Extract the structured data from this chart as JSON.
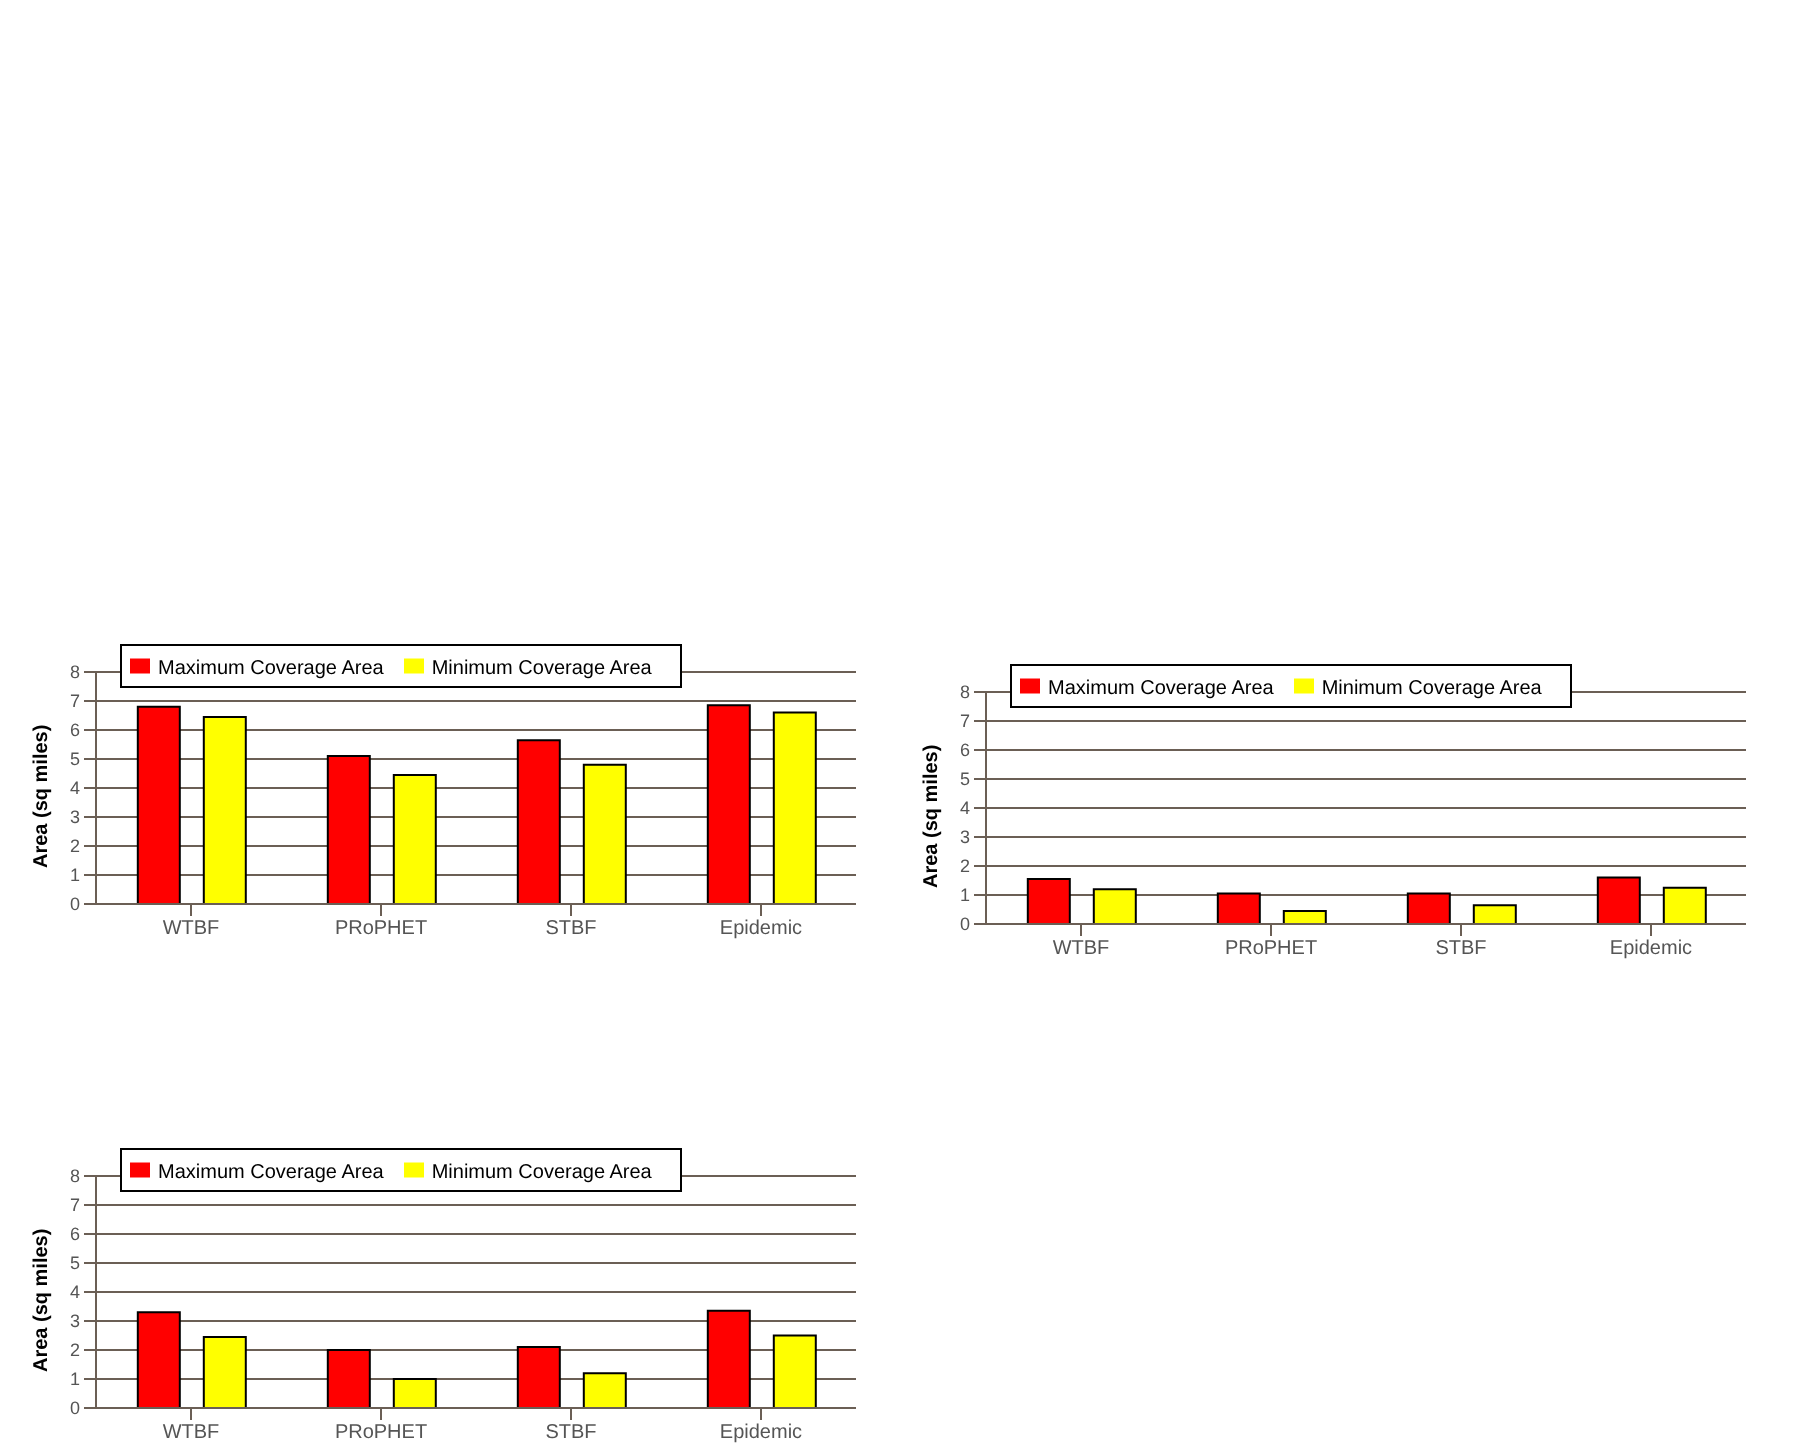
{
  "chart_data": [
    {
      "type": "bar",
      "ylabel": "Area (sq miles)",
      "categories": [
        "WTBF",
        "PRoPHET",
        "STBF",
        "Epidemic"
      ],
      "ylim": [
        0,
        8
      ],
      "yticks": [
        0,
        1,
        2,
        3,
        4,
        5,
        6,
        7,
        8
      ],
      "grid": "y",
      "legend": "top left",
      "series": [
        {
          "name": "Maximum Coverage Area",
          "color": "#ff0000",
          "values": [
            6.8,
            5.1,
            5.65,
            6.85
          ]
        },
        {
          "name": "Minimum Coverage Area",
          "color": "#ffff00",
          "values": [
            6.45,
            4.45,
            4.8,
            6.6
          ]
        }
      ]
    },
    {
      "type": "bar",
      "ylabel": "Area (sq miles)",
      "categories": [
        "WTBF",
        "PRoPHET",
        "STBF",
        "Epidemic"
      ],
      "ylim": [
        0,
        8
      ],
      "yticks": [
        0,
        1,
        2,
        3,
        4,
        5,
        6,
        7,
        8
      ],
      "grid": "y",
      "legend": "top left",
      "series": [
        {
          "name": "Maximum Coverage Area",
          "color": "#ff0000",
          "values": [
            1.55,
            1.05,
            1.05,
            1.6
          ]
        },
        {
          "name": "Minimum Coverage Area",
          "color": "#ffff00",
          "values": [
            1.2,
            0.45,
            0.65,
            1.25
          ]
        }
      ]
    },
    {
      "type": "bar",
      "ylabel": "Area (sq miles)",
      "categories": [
        "WTBF",
        "PRoPHET",
        "STBF",
        "Epidemic"
      ],
      "ylim": [
        0,
        8
      ],
      "yticks": [
        0,
        1,
        2,
        3,
        4,
        5,
        6,
        7,
        8
      ],
      "grid": "y",
      "legend": "top left",
      "series": [
        {
          "name": "Maximum Coverage Area",
          "color": "#ff0000",
          "values": [
            3.3,
            2.0,
            2.1,
            3.35
          ]
        },
        {
          "name": "Minimum Coverage Area",
          "color": "#ffff00",
          "values": [
            2.45,
            1.0,
            1.2,
            2.5
          ]
        }
      ]
    }
  ]
}
